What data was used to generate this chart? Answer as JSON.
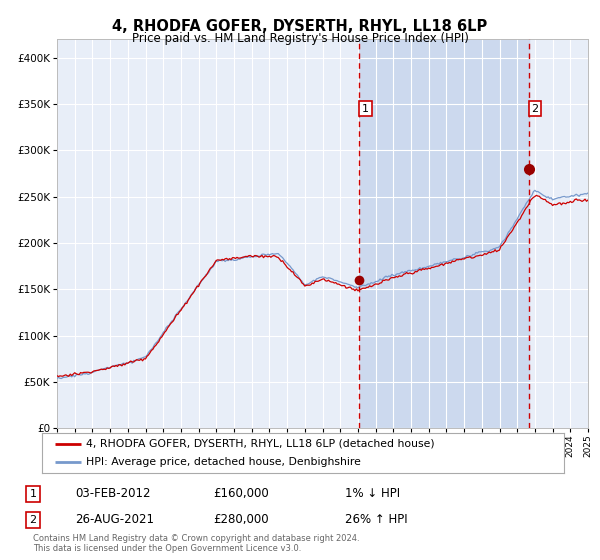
{
  "title": "4, RHODFA GOFER, DYSERTH, RHYL, LL18 6LP",
  "subtitle": "Price paid vs. HM Land Registry's House Price Index (HPI)",
  "title_fontsize": 10.5,
  "subtitle_fontsize": 8.5,
  "bg_color": "#f4f6fb",
  "plot_bg_color": "#e8eef8",
  "grid_color": "#ffffff",
  "x_start_year": 1995,
  "x_end_year": 2025,
  "y_min": 0,
  "y_max": 420000,
  "y_ticks": [
    0,
    50000,
    100000,
    150000,
    200000,
    250000,
    300000,
    350000,
    400000
  ],
  "y_tick_labels": [
    "£0",
    "£50K",
    "£100K",
    "£150K",
    "£200K",
    "£250K",
    "£300K",
    "£350K",
    "£400K"
  ],
  "sale1_year": 2012.08,
  "sale1_price": 160000,
  "sale1_label": "1",
  "sale2_year": 2021.65,
  "sale2_price": 280000,
  "sale2_label": "2",
  "sale1_date": "03-FEB-2012",
  "sale1_amount": "£160,000",
  "sale1_hpi": "1% ↓ HPI",
  "sale2_date": "26-AUG-2021",
  "sale2_amount": "£280,000",
  "sale2_hpi": "26% ↑ HPI",
  "line_red_color": "#cc0000",
  "line_blue_color": "#7799cc",
  "dot_color": "#990000",
  "vline_color": "#cc0000",
  "shade_color": "#ccd9ee",
  "legend1": "4, RHODFA GOFER, DYSERTH, RHYL, LL18 6LP (detached house)",
  "legend2": "HPI: Average price, detached house, Denbighshire",
  "footer": "Contains HM Land Registry data © Crown copyright and database right 2024.\nThis data is licensed under the Open Government Licence v3.0.",
  "font_family": "DejaVu Sans"
}
